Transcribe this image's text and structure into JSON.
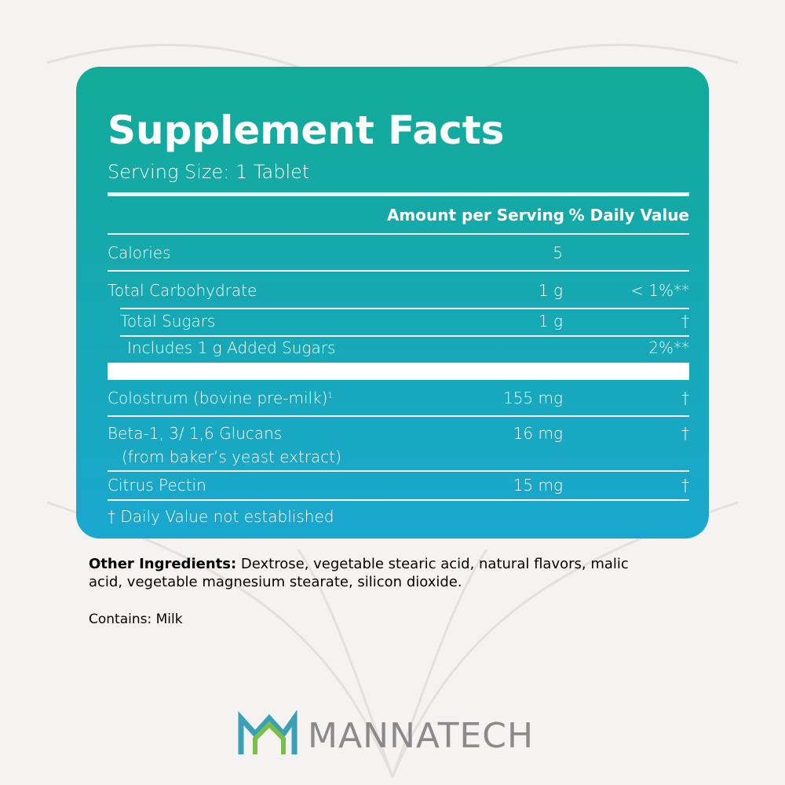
{
  "panel": {
    "title": "Supplement Facts",
    "serving": "Serving Size: 1 Tablet",
    "headers": {
      "amount": "Amount per Serving",
      "dv": "% Daily Value"
    },
    "rows": [
      {
        "name": "Calories",
        "amount": "5"
      },
      {
        "name": "Total Carbohydrate",
        "amount": "1 g",
        "dv": "< 1%**"
      },
      {
        "name": "Total Sugars",
        "amount": "1 g",
        "dv": "†"
      },
      {
        "name": "Includes 1 g Added Sugars",
        "dv": "2%**"
      }
    ],
    "ingredients": [
      {
        "name": "Colostrum (bovine pre-milk)",
        "note": "1",
        "amount": "155 mg",
        "dv": "†"
      },
      {
        "name": "Beta-1, 3/ 1,6 Glucans",
        "sub": "(from baker’s yeast extract)",
        "amount": "16 mg",
        "dv": "†"
      },
      {
        "name": "Citrus Pectin",
        "amount": "15 mg",
        "dv": "†"
      }
    ],
    "footnote": "† Daily Value not established"
  },
  "other": {
    "label": "Other Ingredients:",
    "text": "Dextrose, vegetable stearic acid, natural flavors, malic acid, vegetable magnesium stearate, silicon dioxide."
  },
  "contains": "Contains: Milk",
  "brand": "MANNATECH"
}
